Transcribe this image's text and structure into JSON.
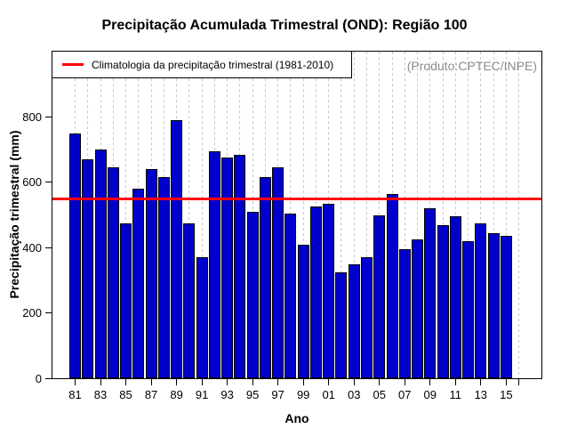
{
  "title": "Precipitação Acumulada Trimestral (OND): Região 100",
  "legend": {
    "label": "Climatologia da precipitação trimestral (1981-2010)"
  },
  "watermark": "(Produto:CPTEC/INPE)",
  "chart_data": {
    "type": "bar",
    "title": "Precipitação Acumulada Trimestral (OND): Região 100",
    "xlabel": "Ano",
    "ylabel": "Precipitação trimestral (mm)",
    "ylim": [
      0,
      1000
    ],
    "yticks": [
      0,
      200,
      400,
      600,
      800
    ],
    "grid": "vertical-dashed-per-year",
    "legend_position": "top-left",
    "climatology_value": 550,
    "categories": [
      1981,
      1982,
      1983,
      1984,
      1985,
      1986,
      1987,
      1988,
      1989,
      1990,
      1991,
      1992,
      1993,
      1994,
      1995,
      1996,
      1997,
      1998,
      1999,
      2000,
      2001,
      2002,
      2003,
      2004,
      2005,
      2006,
      2007,
      2008,
      2009,
      2010,
      2011,
      2012,
      2013,
      2014,
      2015
    ],
    "values": [
      750,
      670,
      700,
      645,
      475,
      580,
      640,
      615,
      790,
      475,
      370,
      695,
      675,
      685,
      510,
      615,
      645,
      505,
      410,
      525,
      535,
      325,
      350,
      370,
      500,
      565,
      395,
      425,
      520,
      470,
      495,
      420,
      475,
      445,
      435
    ],
    "xticks": [
      {
        "i": 0,
        "label": "81"
      },
      {
        "i": 2,
        "label": "83"
      },
      {
        "i": 4,
        "label": "85"
      },
      {
        "i": 6,
        "label": "87"
      },
      {
        "i": 8,
        "label": "89"
      },
      {
        "i": 10,
        "label": "91"
      },
      {
        "i": 12,
        "label": "93"
      },
      {
        "i": 14,
        "label": "95"
      },
      {
        "i": 16,
        "label": "97"
      },
      {
        "i": 18,
        "label": "99"
      },
      {
        "i": 20,
        "label": "01"
      },
      {
        "i": 22,
        "label": "03"
      },
      {
        "i": 24,
        "label": "05"
      },
      {
        "i": 26,
        "label": "07"
      },
      {
        "i": 28,
        "label": "09"
      },
      {
        "i": 30,
        "label": "11"
      },
      {
        "i": 32,
        "label": "13"
      },
      {
        "i": 34,
        "label": "15"
      },
      {
        "i": 35,
        "label": ""
      }
    ],
    "n_gridlines": 36,
    "colors": {
      "bar_fill": "#0000CD",
      "bar_border": "#000000",
      "climatology_line": "#FF0000",
      "gridline": "#C8C8C8",
      "watermark_text": "#8C8C8C"
    }
  }
}
